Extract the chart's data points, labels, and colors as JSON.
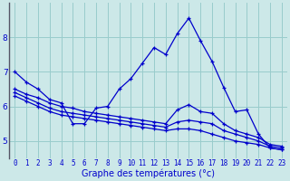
{
  "xlabel": "Graphe des températures (°c)",
  "bg_color": "#cce8e8",
  "line_color": "#0000cc",
  "grid_color": "#99cccc",
  "spine_color": "#555566",
  "hours": [
    0,
    1,
    2,
    3,
    4,
    5,
    6,
    7,
    8,
    9,
    10,
    11,
    12,
    13,
    14,
    15,
    16,
    17,
    18,
    19,
    20,
    21,
    22,
    23
  ],
  "line1": [
    7.0,
    6.7,
    6.5,
    6.2,
    6.1,
    5.5,
    5.5,
    5.95,
    6.0,
    6.5,
    6.8,
    7.25,
    7.7,
    7.5,
    8.1,
    8.55,
    7.9,
    7.3,
    6.55,
    5.85,
    5.9,
    5.2,
    4.8,
    4.75
  ],
  "line2": [
    6.5,
    6.35,
    6.25,
    6.1,
    6.0,
    5.95,
    5.85,
    5.8,
    5.75,
    5.7,
    5.65,
    5.6,
    5.55,
    5.5,
    5.9,
    6.05,
    5.85,
    5.8,
    5.5,
    5.3,
    5.2,
    5.1,
    4.9,
    4.85
  ],
  "line3": [
    6.4,
    6.25,
    6.1,
    5.95,
    5.85,
    5.8,
    5.75,
    5.7,
    5.65,
    5.6,
    5.55,
    5.5,
    5.45,
    5.4,
    5.55,
    5.6,
    5.55,
    5.5,
    5.3,
    5.2,
    5.1,
    5.0,
    4.85,
    4.8
  ],
  "line4": [
    6.3,
    6.15,
    6.0,
    5.85,
    5.75,
    5.7,
    5.65,
    5.6,
    5.55,
    5.5,
    5.45,
    5.4,
    5.35,
    5.3,
    5.35,
    5.35,
    5.3,
    5.2,
    5.1,
    5.0,
    4.95,
    4.9,
    4.8,
    4.75
  ],
  "ylim": [
    4.5,
    9.0
  ],
  "yticks": [
    5,
    6,
    7,
    8
  ],
  "xlabel_fontsize": 7,
  "tick_fontsize": 5.5
}
